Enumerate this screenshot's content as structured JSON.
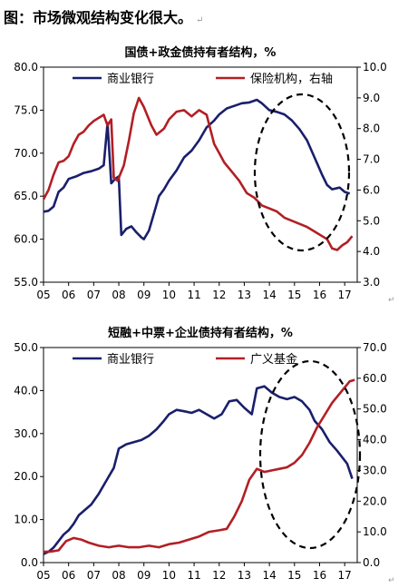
{
  "heading": "图：市场微观结构变化很大。",
  "heading_mark": "↵",
  "chart_data": [
    {
      "type": "line",
      "title": "国债+政金债持有者结构，%",
      "x_ticks": [
        "05",
        "06",
        "07",
        "08",
        "09",
        "10",
        "11",
        "12",
        "13",
        "14",
        "15",
        "16",
        "17"
      ],
      "x_range": [
        2005.0,
        2017.5
      ],
      "y_left": {
        "range": [
          55,
          80
        ],
        "ticks": [
          "55.0",
          "60.0",
          "65.0",
          "70.0",
          "75.0",
          "80.0"
        ]
      },
      "y_right": {
        "range": [
          3,
          10
        ],
        "ticks": [
          "3.0",
          "4.0",
          "5.0",
          "6.0",
          "7.0",
          "8.0",
          "9.0",
          "10.0"
        ]
      },
      "series": [
        {
          "name": "商业银行",
          "axis": "left",
          "color": "#1a1f6b",
          "points": [
            [
              2005.0,
              63.2
            ],
            [
              2005.2,
              63.3
            ],
            [
              2005.4,
              63.8
            ],
            [
              2005.6,
              65.5
            ],
            [
              2005.8,
              66.0
            ],
            [
              2006.0,
              67.0
            ],
            [
              2006.3,
              67.3
            ],
            [
              2006.6,
              67.7
            ],
            [
              2006.9,
              67.9
            ],
            [
              2007.2,
              68.2
            ],
            [
              2007.4,
              68.6
            ],
            [
              2007.55,
              73.5
            ],
            [
              2007.7,
              66.5
            ],
            [
              2007.85,
              67.0
            ],
            [
              2008.0,
              67.3
            ],
            [
              2008.1,
              60.5
            ],
            [
              2008.3,
              61.2
            ],
            [
              2008.5,
              61.5
            ],
            [
              2008.7,
              60.8
            ],
            [
              2008.9,
              60.2
            ],
            [
              2009.0,
              60.0
            ],
            [
              2009.2,
              61.0
            ],
            [
              2009.4,
              63.0
            ],
            [
              2009.6,
              65.0
            ],
            [
              2009.8,
              65.8
            ],
            [
              2010.0,
              66.8
            ],
            [
              2010.3,
              68.0
            ],
            [
              2010.6,
              69.5
            ],
            [
              2010.9,
              70.3
            ],
            [
              2011.2,
              71.5
            ],
            [
              2011.5,
              73.0
            ],
            [
              2011.8,
              73.8
            ],
            [
              2012.0,
              74.5
            ],
            [
              2012.3,
              75.2
            ],
            [
              2012.6,
              75.5
            ],
            [
              2012.9,
              75.8
            ],
            [
              2013.2,
              75.9
            ],
            [
              2013.5,
              76.2
            ],
            [
              2013.7,
              75.8
            ],
            [
              2014.0,
              75.0
            ],
            [
              2014.3,
              74.8
            ],
            [
              2014.6,
              74.5
            ],
            [
              2014.9,
              73.8
            ],
            [
              2015.2,
              72.8
            ],
            [
              2015.5,
              71.5
            ],
            [
              2015.8,
              69.5
            ],
            [
              2016.1,
              67.5
            ],
            [
              2016.3,
              66.3
            ],
            [
              2016.5,
              65.8
            ],
            [
              2016.8,
              66.0
            ],
            [
              2017.0,
              65.5
            ],
            [
              2017.2,
              65.3
            ]
          ]
        },
        {
          "name": "保险机构，右轴",
          "axis": "right",
          "color": "#b21f24",
          "points": [
            [
              2005.0,
              5.7
            ],
            [
              2005.2,
              6.0
            ],
            [
              2005.4,
              6.5
            ],
            [
              2005.6,
              6.9
            ],
            [
              2005.8,
              6.95
            ],
            [
              2006.0,
              7.1
            ],
            [
              2006.2,
              7.5
            ],
            [
              2006.4,
              7.8
            ],
            [
              2006.6,
              7.9
            ],
            [
              2006.8,
              8.1
            ],
            [
              2007.0,
              8.25
            ],
            [
              2007.2,
              8.35
            ],
            [
              2007.4,
              8.45
            ],
            [
              2007.55,
              8.1
            ],
            [
              2007.7,
              8.3
            ],
            [
              2007.8,
              6.4
            ],
            [
              2007.95,
              6.3
            ],
            [
              2008.2,
              6.8
            ],
            [
              2008.4,
              7.6
            ],
            [
              2008.6,
              8.5
            ],
            [
              2008.8,
              9.0
            ],
            [
              2009.0,
              8.7
            ],
            [
              2009.3,
              8.1
            ],
            [
              2009.5,
              7.8
            ],
            [
              2009.8,
              8.0
            ],
            [
              2010.0,
              8.3
            ],
            [
              2010.3,
              8.55
            ],
            [
              2010.6,
              8.6
            ],
            [
              2010.9,
              8.4
            ],
            [
              2011.2,
              8.6
            ],
            [
              2011.5,
              8.45
            ],
            [
              2011.8,
              7.5
            ],
            [
              2012.0,
              7.2
            ],
            [
              2012.2,
              6.9
            ],
            [
              2012.5,
              6.6
            ],
            [
              2012.8,
              6.3
            ],
            [
              2013.1,
              5.9
            ],
            [
              2013.4,
              5.75
            ],
            [
              2013.7,
              5.5
            ],
            [
              2014.0,
              5.4
            ],
            [
              2014.3,
              5.3
            ],
            [
              2014.6,
              5.1
            ],
            [
              2014.9,
              5.0
            ],
            [
              2015.2,
              4.9
            ],
            [
              2015.5,
              4.8
            ],
            [
              2015.8,
              4.65
            ],
            [
              2016.1,
              4.5
            ],
            [
              2016.3,
              4.4
            ],
            [
              2016.5,
              4.1
            ],
            [
              2016.7,
              4.05
            ],
            [
              2016.9,
              4.2
            ],
            [
              2017.1,
              4.3
            ],
            [
              2017.3,
              4.5
            ]
          ]
        }
      ],
      "legend": "top, inside plot",
      "annotation": "dashed ellipse around 2013.5–2017"
    },
    {
      "type": "line",
      "title": "短融+中票+企业债持有者结构，%",
      "x_ticks": [
        "05",
        "06",
        "07",
        "08",
        "09",
        "10",
        "11",
        "12",
        "13",
        "14",
        "15",
        "16",
        "17"
      ],
      "x_range": [
        2005.0,
        2017.5
      ],
      "y_left": {
        "range": [
          0,
          50
        ],
        "ticks": [
          "0.0",
          "10.0",
          "20.0",
          "30.0",
          "40.0",
          "50.0"
        ]
      },
      "y_right": {
        "range": [
          0,
          70
        ],
        "ticks": [
          "0.0",
          "10.0",
          "20.0",
          "30.0",
          "40.0",
          "50.0",
          "60.0",
          "70.0"
        ]
      },
      "series": [
        {
          "name": "商业银行",
          "axis": "left",
          "color": "#1a1f6b",
          "points": [
            [
              2005.0,
              2.0
            ],
            [
              2005.2,
              2.5
            ],
            [
              2005.4,
              3.5
            ],
            [
              2005.6,
              5.0
            ],
            [
              2005.8,
              6.5
            ],
            [
              2006.0,
              7.5
            ],
            [
              2006.2,
              9.0
            ],
            [
              2006.4,
              11.0
            ],
            [
              2006.6,
              12.0
            ],
            [
              2006.9,
              13.5
            ],
            [
              2007.2,
              16.0
            ],
            [
              2007.5,
              19.0
            ],
            [
              2007.8,
              22.0
            ],
            [
              2008.0,
              26.5
            ],
            [
              2008.3,
              27.5
            ],
            [
              2008.6,
              28.0
            ],
            [
              2008.9,
              28.5
            ],
            [
              2009.2,
              29.5
            ],
            [
              2009.5,
              31.0
            ],
            [
              2009.8,
              33.0
            ],
            [
              2010.0,
              34.5
            ],
            [
              2010.3,
              35.5
            ],
            [
              2010.6,
              35.2
            ],
            [
              2010.9,
              34.8
            ],
            [
              2011.2,
              35.5
            ],
            [
              2011.5,
              34.5
            ],
            [
              2011.8,
              33.5
            ],
            [
              2012.1,
              34.5
            ],
            [
              2012.4,
              37.5
            ],
            [
              2012.7,
              37.8
            ],
            [
              2013.0,
              36.0
            ],
            [
              2013.3,
              34.5
            ],
            [
              2013.5,
              40.5
            ],
            [
              2013.8,
              41.0
            ],
            [
              2014.1,
              39.5
            ],
            [
              2014.4,
              38.5
            ],
            [
              2014.7,
              38.0
            ],
            [
              2015.0,
              38.5
            ],
            [
              2015.3,
              37.5
            ],
            [
              2015.6,
              35.5
            ],
            [
              2015.8,
              33.0
            ],
            [
              2016.1,
              31.0
            ],
            [
              2016.4,
              28.0
            ],
            [
              2016.7,
              26.0
            ],
            [
              2016.9,
              24.5
            ],
            [
              2017.1,
              23.0
            ],
            [
              2017.3,
              19.5
            ]
          ]
        },
        {
          "name": "广义基金",
          "axis": "right",
          "color": "#b21f24",
          "points": [
            [
              2005.0,
              3.5
            ],
            [
              2005.3,
              3.6
            ],
            [
              2005.6,
              4.0
            ],
            [
              2005.9,
              7.0
            ],
            [
              2006.2,
              8.0
            ],
            [
              2006.5,
              7.5
            ],
            [
              2006.8,
              6.5
            ],
            [
              2007.2,
              5.5
            ],
            [
              2007.6,
              5.0
            ],
            [
              2008.0,
              5.5
            ],
            [
              2008.4,
              5.0
            ],
            [
              2008.8,
              5.0
            ],
            [
              2009.2,
              5.5
            ],
            [
              2009.6,
              5.0
            ],
            [
              2010.0,
              6.0
            ],
            [
              2010.4,
              6.5
            ],
            [
              2010.8,
              7.5
            ],
            [
              2011.2,
              8.5
            ],
            [
              2011.6,
              10.0
            ],
            [
              2012.0,
              10.5
            ],
            [
              2012.3,
              11.0
            ],
            [
              2012.6,
              15.0
            ],
            [
              2012.9,
              20.0
            ],
            [
              2013.2,
              27.0
            ],
            [
              2013.5,
              30.5
            ],
            [
              2013.8,
              29.5
            ],
            [
              2014.1,
              30.0
            ],
            [
              2014.4,
              30.5
            ],
            [
              2014.7,
              31.0
            ],
            [
              2015.0,
              32.5
            ],
            [
              2015.3,
              35.0
            ],
            [
              2015.6,
              39.0
            ],
            [
              2015.9,
              44.0
            ],
            [
              2016.2,
              48.0
            ],
            [
              2016.5,
              52.0
            ],
            [
              2016.8,
              55.0
            ],
            [
              2017.0,
              57.0
            ],
            [
              2017.2,
              59.0
            ],
            [
              2017.4,
              59.5
            ]
          ]
        }
      ],
      "legend": "top, inside plot",
      "annotation": "dashed ellipse around 2013.5–2017"
    }
  ]
}
